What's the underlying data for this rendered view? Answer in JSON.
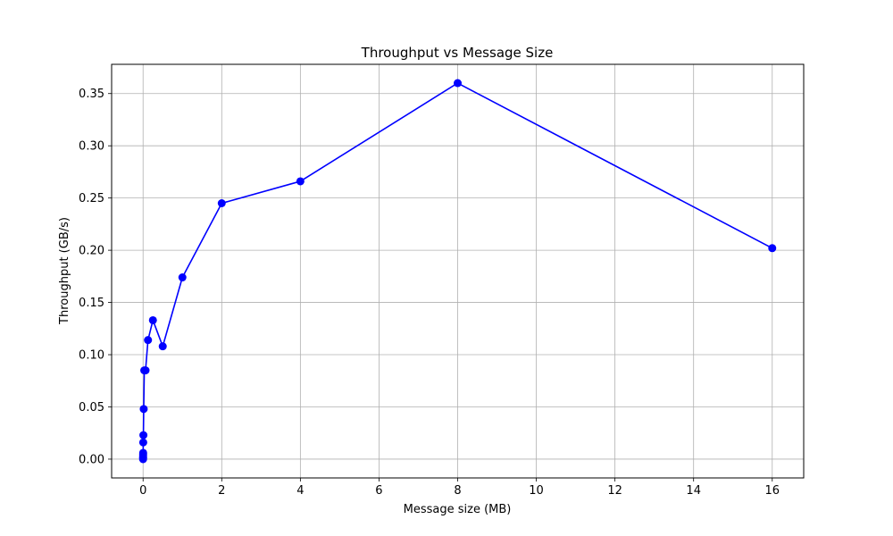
{
  "chart_data": {
    "type": "line",
    "title": "Throughput vs Message Size",
    "xlabel": "Message size (MB)",
    "ylabel": "Throughput (GB/s)",
    "xlim": [
      -0.8,
      16.8
    ],
    "ylim": [
      -0.018,
      0.378
    ],
    "xticks": [
      0,
      2,
      4,
      6,
      8,
      10,
      12,
      14,
      16
    ],
    "yticks": [
      0.0,
      0.05,
      0.1,
      0.15,
      0.2,
      0.25,
      0.3,
      0.35
    ],
    "ytick_labels": [
      "0.00",
      "0.05",
      "0.10",
      "0.15",
      "0.20",
      "0.25",
      "0.30",
      "0.35"
    ],
    "grid": true,
    "line_color": "#0000ff",
    "marker": "circle",
    "series": [
      {
        "x": [
          0.0001,
          0.0002,
          0.0005,
          0.001,
          0.002,
          0.004,
          0.008,
          0.016,
          0.031,
          0.0625,
          0.125,
          0.25,
          0.5,
          1,
          2,
          4,
          8,
          16
        ],
        "y": [
          0.0,
          0.001,
          0.002,
          0.004,
          0.006,
          0.016,
          0.023,
          0.048,
          0.085,
          0.085,
          0.114,
          0.133,
          0.108,
          0.174,
          0.245,
          0.266,
          0.36,
          0.202
        ]
      }
    ]
  }
}
